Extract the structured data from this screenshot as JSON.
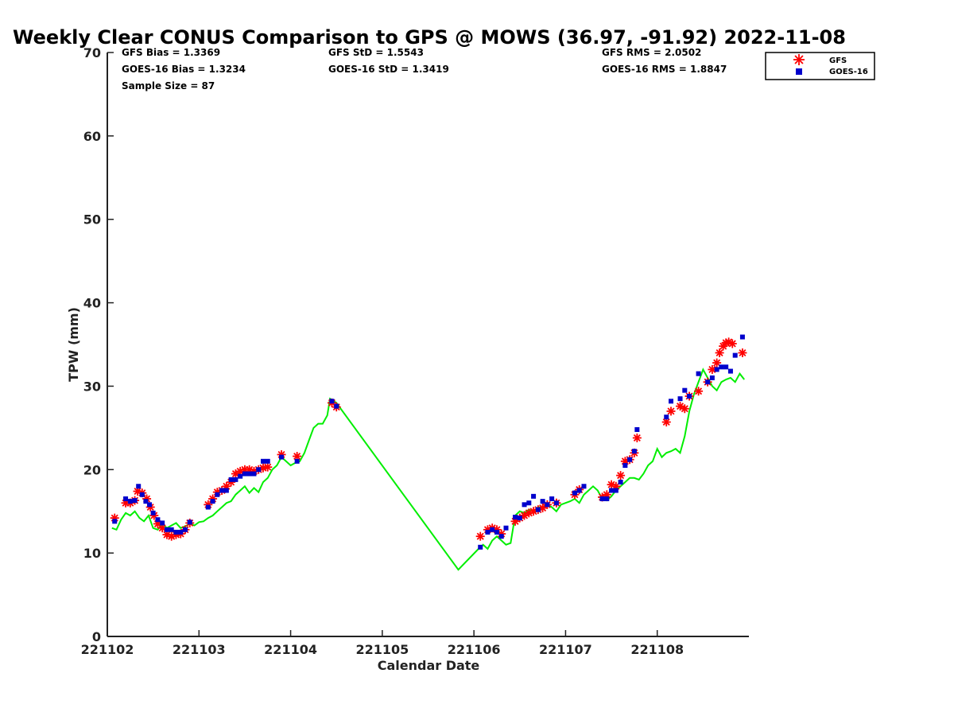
{
  "chart_data": {
    "type": "scatter",
    "title": "Weekly Clear CONUS Comparison to GPS @ MOWS (36.97, -91.92) 2022-11-08",
    "xlabel": "Calendar Date",
    "ylabel": "TPW (mm)",
    "xlim": [
      221102,
      221109
    ],
    "ylim": [
      0,
      70
    ],
    "x_ticks": [
      "221102",
      "221103",
      "221104",
      "221105",
      "221106",
      "221107",
      "221108"
    ],
    "y_ticks": [
      "0",
      "10",
      "20",
      "30",
      "40",
      "50",
      "60",
      "70"
    ],
    "grid": false,
    "legend_placement": "top-right",
    "stats": {
      "gfs_bias": "GFS Bias = 1.3369",
      "goes_bias": "GOES-16 Bias = 1.3234",
      "sample_size": "Sample Size = 87",
      "gfs_std": "GFS StD = 1.5543",
      "goes_std": "GOES-16 StD = 1.3419",
      "gfs_rms": "GFS RMS = 2.0502",
      "goes_rms": "GOES-16 RMS = 1.8847"
    },
    "series": [
      {
        "name": "GFS",
        "marker": "asterisk",
        "color": "#ff0000",
        "x": [
          221102.08,
          221102.2,
          221102.25,
          221102.3,
          221102.33,
          221102.38,
          221102.43,
          221102.47,
          221102.51,
          221102.55,
          221102.6,
          221102.65,
          221102.7,
          221102.75,
          221102.8,
          221102.85,
          221102.9,
          221103.1,
          221103.15,
          221103.2,
          221103.25,
          221103.3,
          221103.35,
          221103.4,
          221103.45,
          221103.5,
          221103.55,
          221103.6,
          221103.65,
          221103.7,
          221103.75,
          221103.9,
          221104.07,
          221104.45,
          221104.5,
          221106.07,
          221106.15,
          221106.2,
          221106.25,
          221106.3,
          221106.45,
          221106.5,
          221106.55,
          221106.6,
          221106.65,
          221106.7,
          221106.75,
          221106.8,
          221106.9,
          221107.1,
          221107.15,
          221107.4,
          221107.45,
          221107.5,
          221107.55,
          221107.6,
          221107.65,
          221107.7,
          221107.75,
          221107.78,
          221108.1,
          221108.15,
          221108.25,
          221108.3,
          221108.35,
          221108.45,
          221108.55,
          221108.6,
          221108.65,
          221108.68,
          221108.72,
          221108.75,
          221108.78,
          221108.82,
          221108.93
        ],
        "values": [
          14.2,
          16.0,
          16.0,
          16.3,
          17.4,
          17.2,
          16.5,
          15.5,
          14.5,
          13.5,
          13.0,
          12.2,
          12.0,
          12.2,
          12.3,
          12.8,
          13.6,
          15.8,
          16.5,
          17.3,
          17.5,
          18.0,
          18.5,
          19.5,
          19.8,
          20.0,
          20.0,
          19.8,
          20.0,
          20.2,
          20.3,
          21.8,
          21.6,
          28.0,
          27.5,
          12.0,
          12.8,
          13.0,
          12.8,
          12.3,
          13.8,
          14.2,
          14.5,
          14.8,
          15.0,
          15.2,
          15.4,
          15.8,
          16.0,
          17.0,
          17.6,
          16.7,
          17.0,
          18.2,
          18.0,
          19.3,
          21.0,
          21.2,
          22.0,
          23.8,
          25.7,
          27.0,
          27.6,
          27.3,
          28.8,
          29.4,
          30.5,
          32.0,
          32.8,
          34.0,
          34.8,
          35.2,
          35.3,
          35.1,
          34.0
        ]
      },
      {
        "name": "GOES-16",
        "marker": "square",
        "color": "#0000cc",
        "x": [
          221102.08,
          221102.2,
          221102.25,
          221102.3,
          221102.34,
          221102.38,
          221102.42,
          221102.46,
          221102.5,
          221102.55,
          221102.6,
          221102.65,
          221102.7,
          221102.75,
          221102.8,
          221102.85,
          221102.9,
          221103.1,
          221103.15,
          221103.2,
          221103.25,
          221103.3,
          221103.35,
          221103.4,
          221103.45,
          221103.5,
          221103.55,
          221103.6,
          221103.65,
          221103.7,
          221103.75,
          221103.9,
          221104.07,
          221104.45,
          221104.5,
          221106.07,
          221106.15,
          221106.2,
          221106.25,
          221106.3,
          221106.35,
          221106.45,
          221106.5,
          221106.55,
          221106.6,
          221106.65,
          221106.7,
          221106.75,
          221106.8,
          221106.85,
          221106.9,
          221107.1,
          221107.15,
          221107.2,
          221107.4,
          221107.45,
          221107.5,
          221107.55,
          221107.6,
          221107.65,
          221107.7,
          221107.75,
          221107.78,
          221108.1,
          221108.15,
          221108.25,
          221108.3,
          221108.35,
          221108.45,
          221108.55,
          221108.6,
          221108.65,
          221108.7,
          221108.75,
          221108.8,
          221108.85,
          221108.93
        ],
        "values": [
          13.8,
          16.5,
          16.2,
          16.3,
          18.0,
          17.0,
          16.2,
          15.8,
          14.8,
          14.0,
          13.6,
          12.8,
          12.8,
          12.5,
          12.5,
          12.8,
          13.7,
          15.5,
          16.2,
          17.0,
          17.5,
          17.5,
          18.8,
          18.8,
          19.2,
          19.5,
          19.5,
          19.5,
          20.0,
          21.0,
          21.0,
          21.5,
          21.0,
          28.2,
          27.6,
          10.7,
          12.5,
          12.8,
          12.5,
          12.0,
          13.0,
          14.3,
          14.2,
          15.8,
          16.0,
          16.8,
          15.2,
          16.2,
          15.8,
          16.5,
          16.0,
          17.2,
          17.5,
          18.0,
          16.5,
          16.5,
          17.5,
          17.5,
          18.5,
          20.5,
          21.2,
          22.2,
          24.8,
          26.3,
          28.2,
          28.5,
          29.5,
          28.8,
          31.5,
          30.5,
          31.0,
          32.0,
          32.3,
          32.3,
          31.8,
          33.7,
          35.9
        ]
      },
      {
        "name": "GPS",
        "marker": "line",
        "color": "#00ee00",
        "x": [
          221102.05,
          221102.1,
          221102.15,
          221102.2,
          221102.25,
          221102.3,
          221102.35,
          221102.4,
          221102.45,
          221102.5,
          221102.55,
          221102.6,
          221102.65,
          221102.7,
          221102.75,
          221102.8,
          221102.85,
          221102.9,
          221102.95,
          221103.0,
          221103.05,
          221103.1,
          221103.15,
          221103.2,
          221103.25,
          221103.3,
          221103.35,
          221103.4,
          221103.45,
          221103.5,
          221103.55,
          221103.6,
          221103.65,
          221103.7,
          221103.75,
          221103.8,
          221103.85,
          221103.9,
          221103.95,
          221104.0,
          221104.05,
          221104.1,
          221104.15,
          221104.2,
          221104.25,
          221104.3,
          221104.35,
          221104.4,
          221104.43,
          221104.5,
          221105.83,
          221106.05,
          221106.1,
          221106.15,
          221106.2,
          221106.25,
          221106.3,
          221106.35,
          221106.4,
          221106.45,
          221106.5,
          221106.55,
          221106.6,
          221106.65,
          221106.7,
          221106.75,
          221106.8,
          221106.85,
          221106.9,
          221106.95,
          221107.0,
          221107.05,
          221107.1,
          221107.15,
          221107.2,
          221107.25,
          221107.3,
          221107.35,
          221107.4,
          221107.45,
          221107.5,
          221107.55,
          221107.6,
          221107.65,
          221107.7,
          221107.75,
          221107.8,
          221107.85,
          221107.9,
          221107.95,
          221108.0,
          221108.05,
          221108.1,
          221108.15,
          221108.2,
          221108.25,
          221108.3,
          221108.35,
          221108.4,
          221108.45,
          221108.5,
          221108.55,
          221108.6,
          221108.65,
          221108.7,
          221108.75,
          221108.8,
          221108.85,
          221108.9,
          221108.95
        ],
        "values": [
          13.0,
          12.8,
          14.0,
          14.8,
          14.5,
          15.0,
          14.2,
          13.8,
          14.5,
          13.0,
          12.8,
          13.5,
          13.0,
          13.3,
          13.6,
          13.0,
          13.2,
          13.5,
          13.3,
          13.7,
          13.8,
          14.2,
          14.5,
          15.0,
          15.5,
          16.0,
          16.2,
          17.0,
          17.5,
          18.0,
          17.2,
          17.8,
          17.3,
          18.5,
          19.0,
          20.0,
          20.5,
          21.5,
          21.0,
          20.5,
          20.8,
          21.0,
          22.0,
          23.5,
          25.0,
          25.5,
          25.5,
          26.5,
          28.5,
          28.0,
          8.0,
          10.5,
          11.0,
          10.5,
          11.5,
          12.0,
          11.5,
          11.0,
          11.2,
          14.5,
          15.0,
          14.8,
          15.2,
          15.0,
          15.5,
          15.5,
          15.8,
          15.5,
          15.0,
          15.8,
          16.0,
          16.2,
          16.5,
          16.0,
          17.0,
          17.5,
          18.0,
          17.5,
          16.5,
          16.3,
          16.8,
          17.5,
          18.0,
          18.5,
          19.0,
          19.0,
          18.8,
          19.5,
          20.5,
          21.0,
          22.5,
          21.5,
          22.0,
          22.2,
          22.5,
          22.0,
          24.0,
          27.0,
          29.0,
          30.5,
          32.0,
          31.0,
          30.0,
          29.5,
          30.5,
          30.8,
          31.0,
          30.5,
          31.5,
          30.8
        ]
      }
    ]
  }
}
